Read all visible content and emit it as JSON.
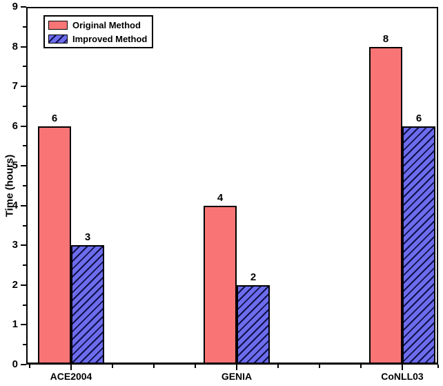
{
  "chart_data": {
    "type": "bar",
    "title": "",
    "categories": [
      "ACE2004",
      "GENIA",
      "CoNLL03"
    ],
    "series": [
      {
        "name": "Original Method",
        "values": [
          6,
          4,
          8
        ],
        "color": "#F97575",
        "hatch": false
      },
      {
        "name": "Improved Method",
        "values": [
          3,
          2,
          6
        ],
        "color": "#6C6CEC",
        "hatch": true,
        "hatch_color": "#10104A"
      }
    ],
    "bar_value_labels": {
      "Original Method": [
        "6",
        "4",
        "8"
      ],
      "Improved Method": [
        "3",
        "2",
        "6"
      ]
    },
    "xlabel": "",
    "ylabel": "Time (hours)",
    "ylim": [
      0,
      9
    ],
    "yticks": [
      "0",
      "1",
      "2",
      "3",
      "4",
      "5",
      "6",
      "7",
      "8",
      "9"
    ],
    "yminor_interval": 0.5,
    "grid": false,
    "legend_position": "top-left",
    "frame_color": "#000000",
    "background_color": "#FFFFFF"
  }
}
